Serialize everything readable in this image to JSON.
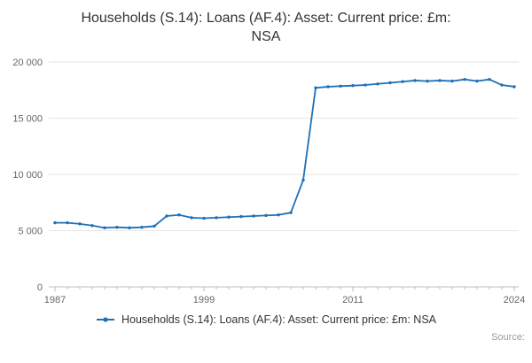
{
  "title": "Households (S.14): Loans (AF.4): Asset: Current price: £m:\nNSA",
  "legend": {
    "label": "Households (S.14): Loans (AF.4): Asset: Current price: £m: NSA"
  },
  "source": {
    "label": "Source:"
  },
  "colors": {
    "line": "#1d70b8",
    "grid": "#e6e6e6",
    "axis": "#bdbdbd",
    "axis_text": "#666666",
    "title_text": "#333333",
    "source_text": "#999999"
  },
  "chart_data": {
    "type": "line",
    "title": "Households (S.14): Loans (AF.4): Asset: Current price: £m: NSA",
    "xlabel": "",
    "ylabel": "",
    "grid": "horizontal",
    "legend_position": "bottom",
    "ylim": [
      0,
      20000
    ],
    "yticks": [
      0,
      5000,
      10000,
      15000,
      20000
    ],
    "ytick_labels": [
      "0",
      "5 000",
      "10 000",
      "15 000",
      "20 000"
    ],
    "xticks": [
      1987,
      1999,
      2011,
      2024
    ],
    "x": [
      1987,
      1988,
      1989,
      1990,
      1991,
      1992,
      1993,
      1994,
      1995,
      1996,
      1997,
      1998,
      1999,
      2000,
      2001,
      2002,
      2003,
      2004,
      2005,
      2006,
      2007,
      2008,
      2009,
      2010,
      2011,
      2012,
      2013,
      2014,
      2015,
      2016,
      2017,
      2018,
      2019,
      2020,
      2021,
      2022,
      2023,
      2024
    ],
    "series": [
      {
        "name": "Households (S.14): Loans (AF.4): Asset: Current price: £m: NSA",
        "values": [
          5700,
          5700,
          5600,
          5450,
          5250,
          5300,
          5250,
          5300,
          5400,
          6300,
          6400,
          6150,
          6100,
          6150,
          6200,
          6250,
          6300,
          6350,
          6400,
          6600,
          9500,
          17700,
          17800,
          17850,
          17900,
          17950,
          18050,
          18150,
          18250,
          18350,
          18300,
          18350,
          18300,
          18450,
          18300,
          18450,
          17950,
          17800
        ]
      }
    ]
  }
}
